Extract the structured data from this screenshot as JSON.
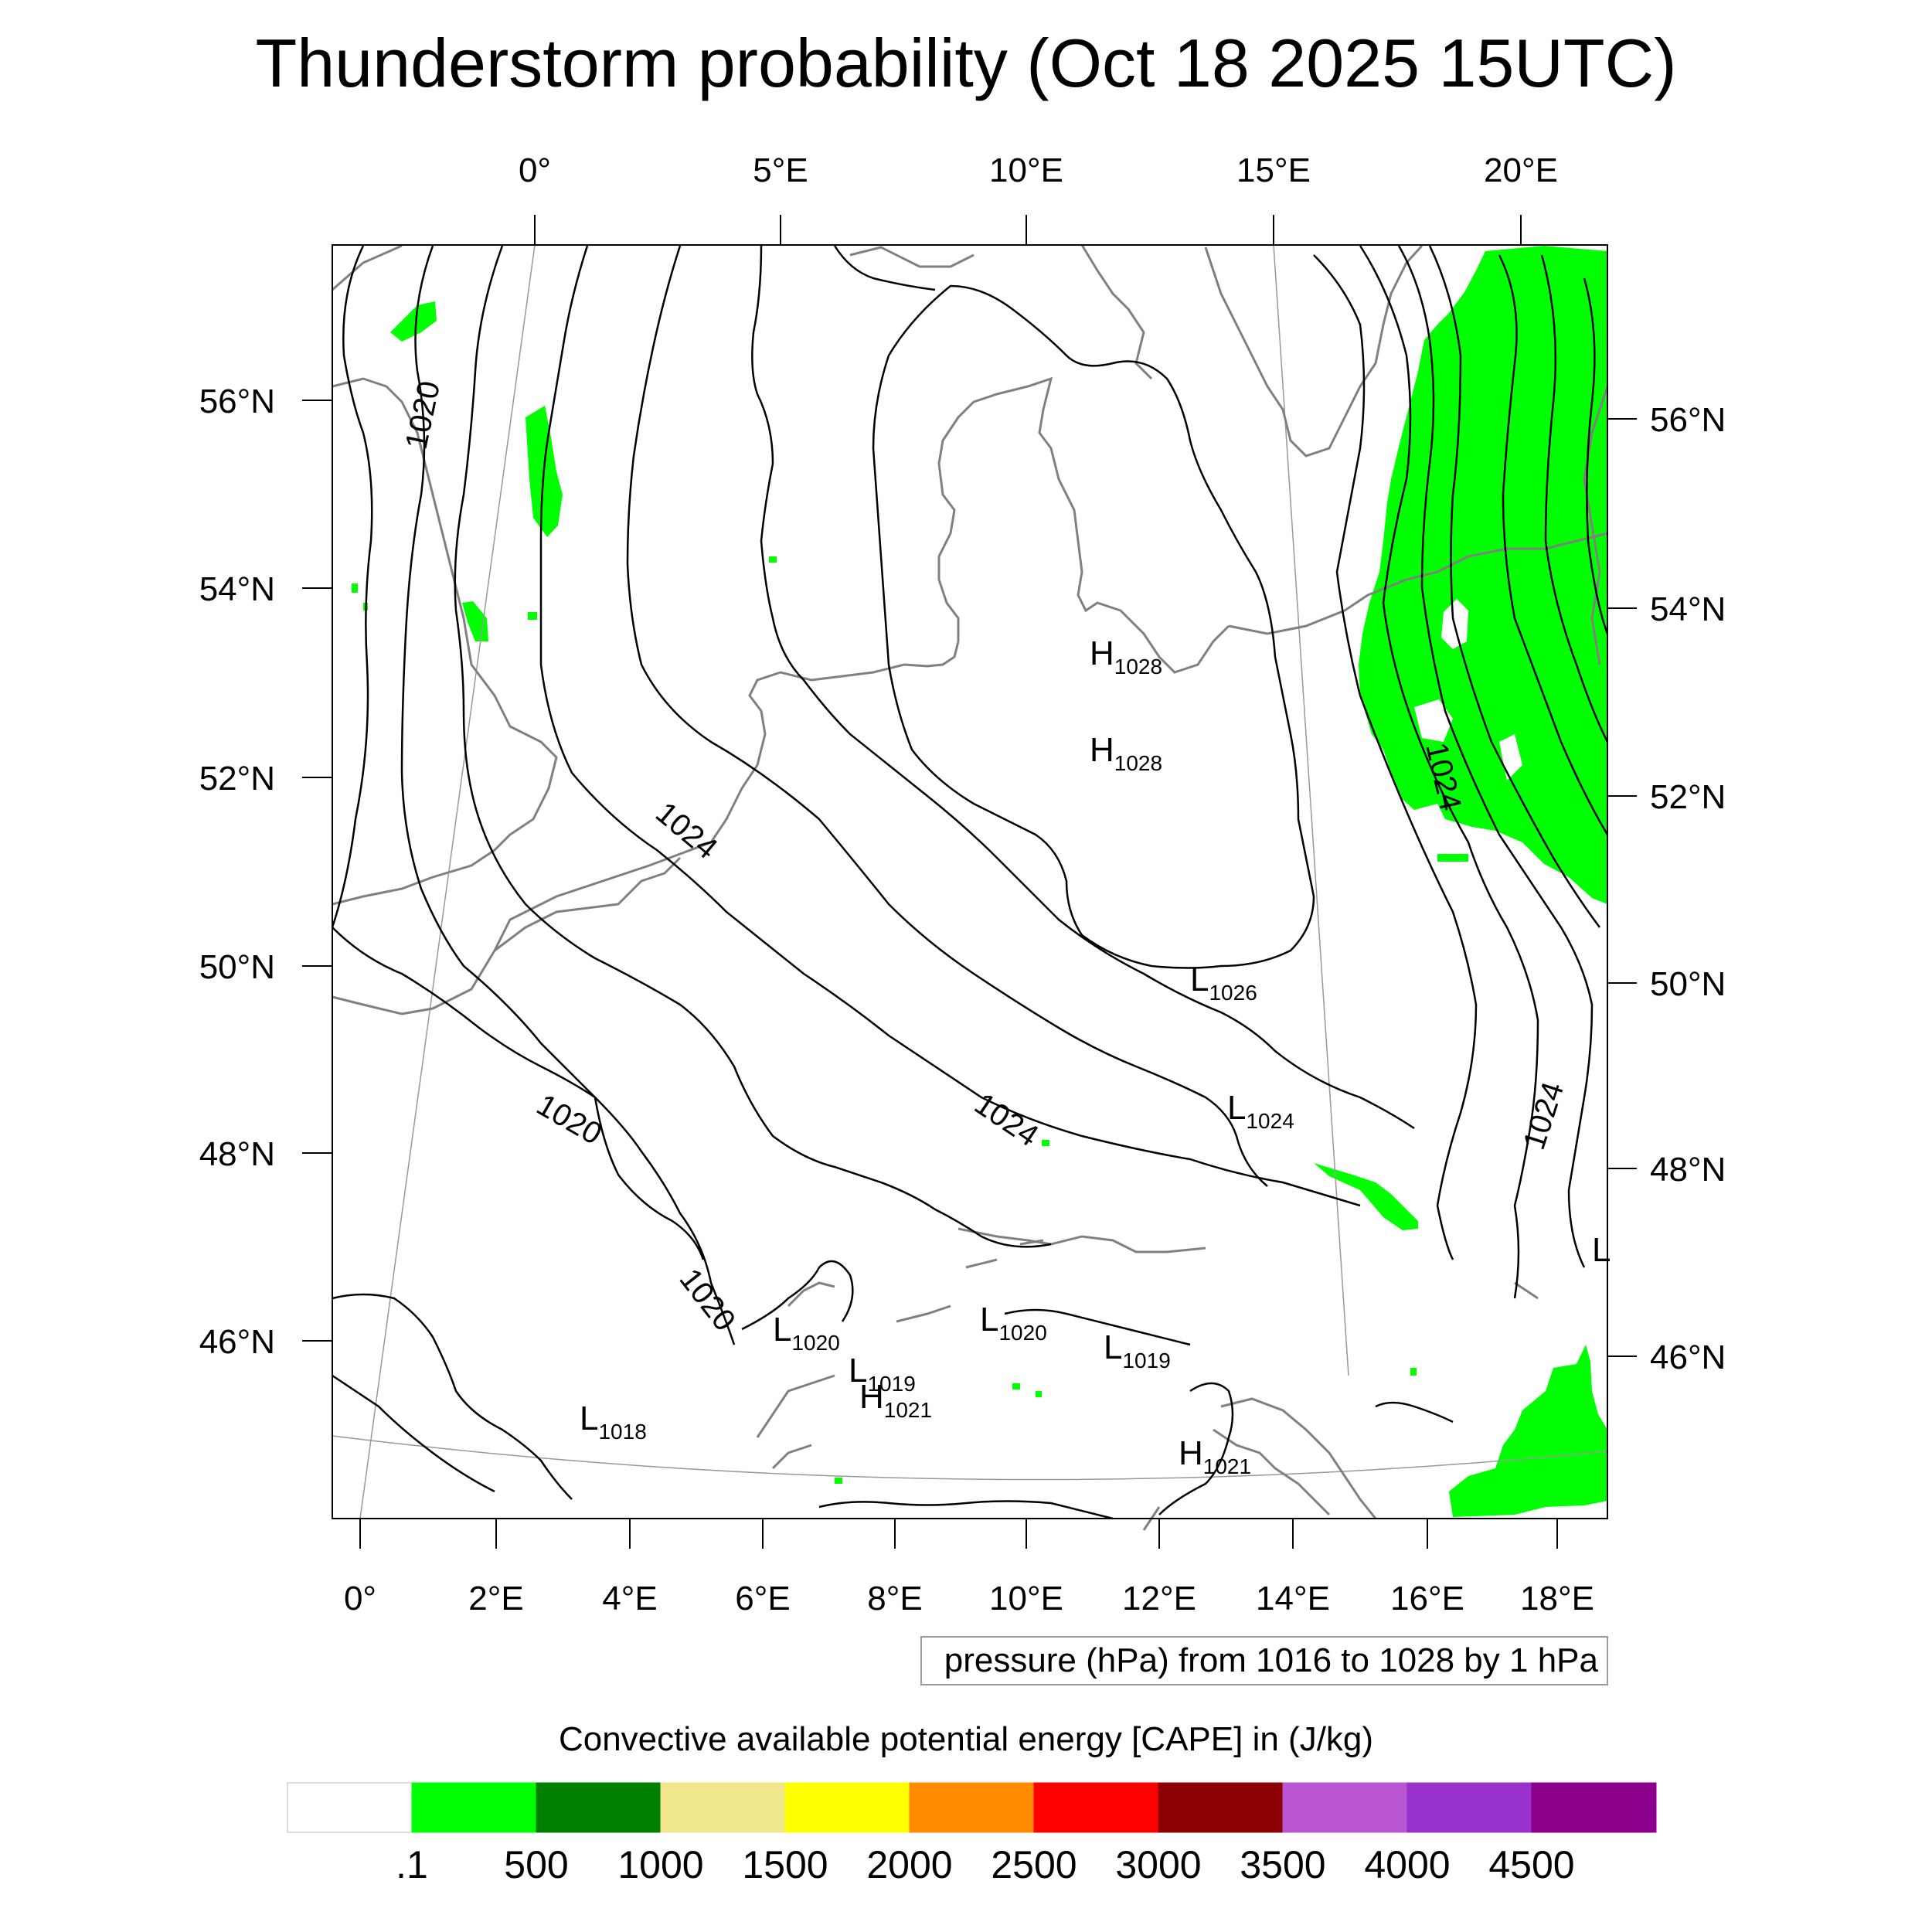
{
  "title": "Thunderstorm probability (Oct 18 2025 15UTC)",
  "top_lon_labels": [
    "0°",
    "5°E",
    "10°E",
    "15°E",
    "20°E"
  ],
  "bottom_lon_labels": [
    "0°",
    "2°E",
    "4°E",
    "6°E",
    "8°E",
    "10°E",
    "12°E",
    "14°E",
    "16°E",
    "18°E"
  ],
  "left_lat_labels": [
    "56°N",
    "54°N",
    "52°N",
    "50°N",
    "48°N",
    "46°N"
  ],
  "right_lat_labels": [
    "56°N",
    "54°N",
    "52°N",
    "50°N",
    "48°N",
    "46°N"
  ],
  "isobar_labels": [
    "1020",
    "1024",
    "1024",
    "1020",
    "1020",
    "1024",
    "1024"
  ],
  "pressure_systems": [
    {
      "type": "H",
      "value": "1028"
    },
    {
      "type": "H",
      "value": "1028"
    },
    {
      "type": "L",
      "value": "1026"
    },
    {
      "type": "L",
      "value": "1024"
    },
    {
      "type": "L",
      "value": "1020"
    },
    {
      "type": "L",
      "value": "1019"
    },
    {
      "type": "H",
      "value": "1021"
    },
    {
      "type": "L",
      "value": "1020"
    },
    {
      "type": "L",
      "value": "1019"
    },
    {
      "type": "L",
      "value": "1018"
    },
    {
      "type": "H",
      "value": "1021"
    },
    {
      "type": "L",
      "value": ""
    }
  ],
  "pressure_note": "pressure (hPa) from 1016 to 1028 by 1 hPa",
  "colorbar": {
    "title": "Convective available potential energy [CAPE] in (J/kg)",
    "colors": [
      "#ffffff",
      "#00ff00",
      "#008000",
      "#f0e68c",
      "#ffff00",
      "#ff8c00",
      "#ff0000",
      "#8b0000",
      "#ba55d3",
      "#9932cc",
      "#8b008b"
    ],
    "labels": [
      ".1",
      "500",
      "1000",
      "1500",
      "2000",
      "2500",
      "3000",
      "3500",
      "4000",
      "4500"
    ]
  },
  "colors": {
    "cape_green": "#00ff00",
    "isobar": "#000000",
    "coastline": "#808080"
  }
}
